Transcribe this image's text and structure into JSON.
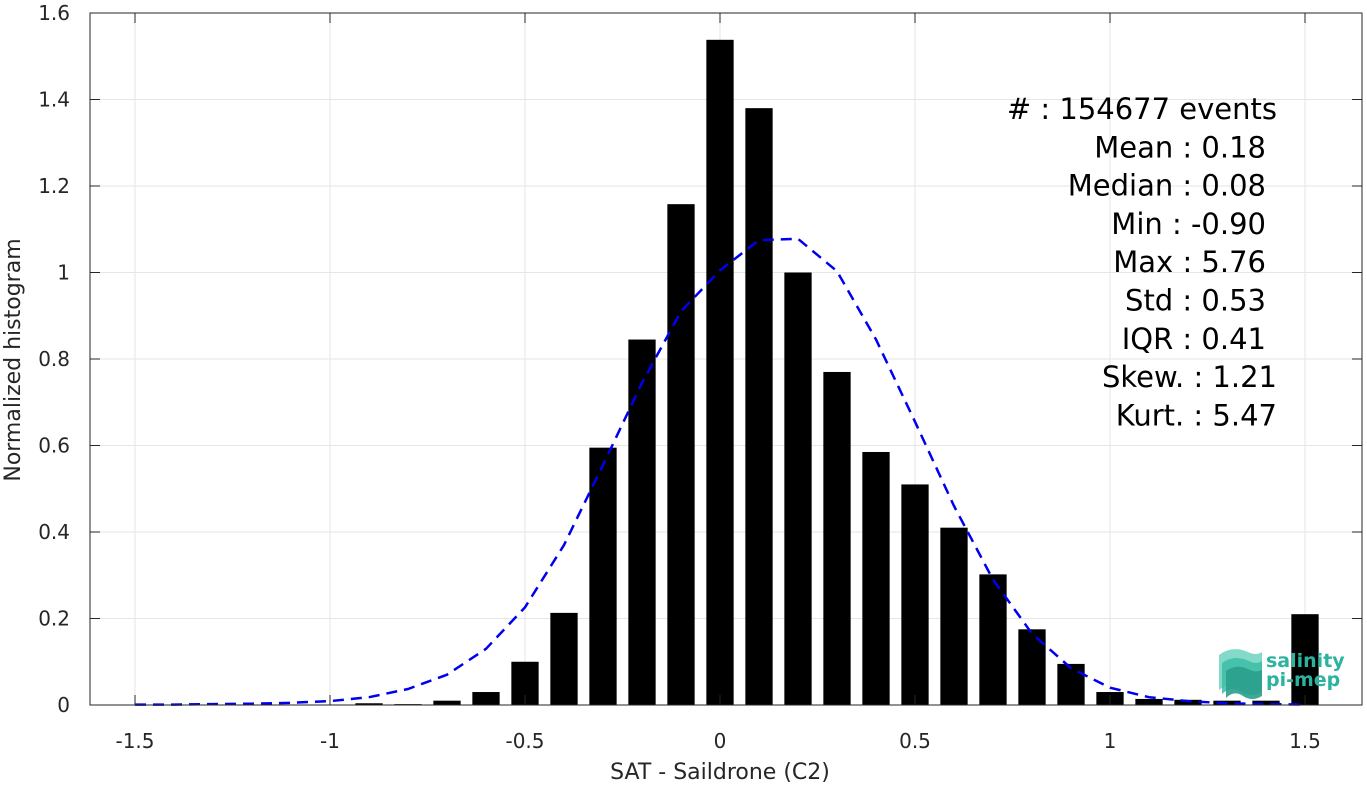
{
  "chart_data": {
    "type": "bar",
    "xlabel": "SAT - Saildrone (C2)",
    "ylabel": "Normalized histogram",
    "xlim": [
      -1.62,
      1.62
    ],
    "ylim": [
      0,
      1.6
    ],
    "xticks": [
      -1.5,
      -1,
      -0.5,
      0,
      0.5,
      1,
      1.5
    ],
    "xtick_labels": [
      "-1.5",
      "-1",
      "-0.5",
      "0",
      "0.5",
      "1",
      "1.5"
    ],
    "yticks": [
      0,
      0.2,
      0.4,
      0.6,
      0.8,
      1,
      1.2,
      1.4,
      1.6
    ],
    "ytick_labels": [
      "0",
      "0.2",
      "0.4",
      "0.6",
      "0.8",
      "1",
      "1.2",
      "1.4",
      "1.6"
    ],
    "grid": true,
    "bar_width": 0.07,
    "bar_color": "#000000",
    "bars": {
      "x": [
        -0.9,
        -0.8,
        -0.7,
        -0.6,
        -0.5,
        -0.4,
        -0.3,
        -0.2,
        -0.1,
        0.0,
        0.1,
        0.2,
        0.3,
        0.4,
        0.5,
        0.6,
        0.7,
        0.8,
        0.9,
        1.0,
        1.1,
        1.2,
        1.3,
        1.4,
        1.5
      ],
      "values": [
        0.004,
        0.002,
        0.01,
        0.03,
        0.1,
        0.213,
        0.595,
        0.845,
        1.158,
        1.538,
        1.38,
        1.0,
        0.77,
        0.585,
        0.51,
        0.41,
        0.302,
        0.175,
        0.095,
        0.03,
        0.014,
        0.012,
        0.01,
        0.01,
        0.21
      ]
    },
    "fit_curve": {
      "style": "dashed",
      "color": "#0000ee",
      "x": [
        -1.5,
        -1.4,
        -1.3,
        -1.2,
        -1.1,
        -1.0,
        -0.9,
        -0.8,
        -0.7,
        -0.6,
        -0.5,
        -0.4,
        -0.3,
        -0.2,
        -0.1,
        0.0,
        0.1,
        0.2,
        0.3,
        0.4,
        0.5,
        0.6,
        0.7,
        0.8,
        0.9,
        1.0,
        1.1,
        1.2,
        1.3,
        1.4,
        1.5
      ],
      "y": [
        0.001,
        0.001,
        0.002,
        0.003,
        0.005,
        0.009,
        0.018,
        0.037,
        0.07,
        0.13,
        0.226,
        0.37,
        0.555,
        0.745,
        0.91,
        1.005,
        1.075,
        1.078,
        1.003,
        0.845,
        0.655,
        0.46,
        0.29,
        0.165,
        0.085,
        0.04,
        0.018,
        0.009,
        0.004,
        0.002,
        0.001
      ]
    },
    "stats_box": [
      "#  : 154677 events",
      "Mean : 0.18",
      "Median : 0.08",
      "Min : -0.90",
      "Max : 5.76",
      "Std : 0.53",
      "IQR : 0.41",
      "Skew. : 1.21",
      "Kurt. : 5.47"
    ]
  },
  "logo": {
    "line1": "salinity",
    "line2": "pi-mep",
    "color": "#2bb3a0"
  }
}
